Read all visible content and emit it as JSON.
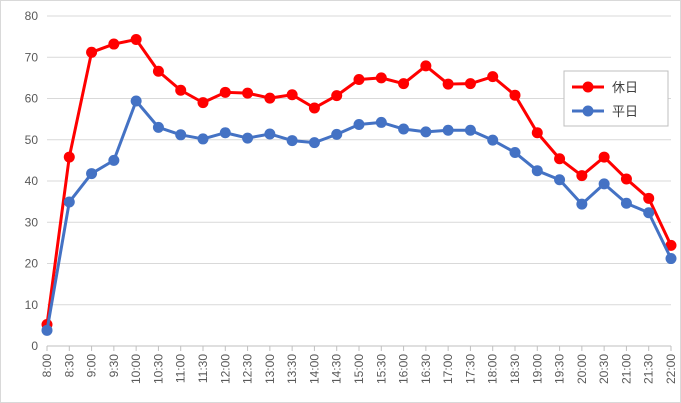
{
  "chart_data": {
    "type": "line",
    "title": "",
    "xlabel": "",
    "ylabel": "",
    "ylim": [
      0,
      80
    ],
    "yticks": [
      0,
      10,
      20,
      30,
      40,
      50,
      60,
      70,
      80
    ],
    "grid": "horizontal",
    "legend": "right",
    "categories": [
      "8:00",
      "8:30",
      "9:00",
      "9:30",
      "10:00",
      "10:30",
      "11:00",
      "11:30",
      "12:00",
      "12:30",
      "13:00",
      "13:30",
      "14:00",
      "14:30",
      "15:00",
      "15:30",
      "16:00",
      "16:30",
      "17:00",
      "17:30",
      "18:00",
      "18:30",
      "19:00",
      "19:30",
      "20:00",
      "20:30",
      "21:00",
      "21:30",
      "22:00"
    ],
    "series": [
      {
        "name": "休日",
        "color": "#ff0000",
        "values": [
          5.2,
          45.8,
          71.2,
          73.2,
          74.3,
          66.6,
          62.0,
          59.0,
          61.5,
          61.3,
          60.1,
          60.9,
          57.7,
          60.7,
          64.6,
          65.0,
          63.6,
          67.9,
          63.5,
          63.6,
          65.3,
          60.8,
          51.7,
          45.4,
          41.3,
          45.8,
          40.5,
          35.8,
          24.4
        ]
      },
      {
        "name": "平日",
        "color": "#4472c4",
        "values": [
          3.8,
          34.9,
          41.8,
          45.0,
          59.4,
          53.0,
          51.2,
          50.2,
          51.7,
          50.4,
          51.4,
          49.8,
          49.3,
          51.3,
          53.7,
          54.2,
          52.6,
          51.9,
          52.3,
          52.3,
          49.9,
          46.9,
          42.5,
          40.3,
          34.4,
          39.3,
          34.6,
          32.3,
          21.2
        ]
      }
    ]
  }
}
